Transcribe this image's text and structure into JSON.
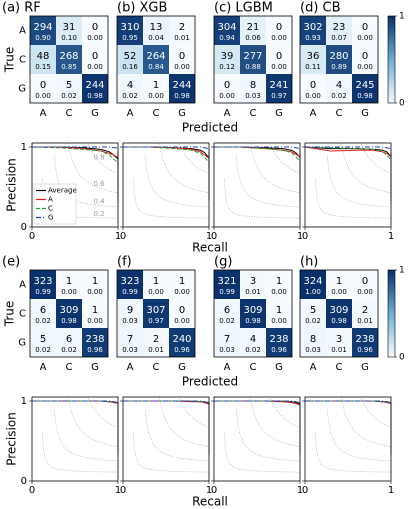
{
  "chart_data": [
    {
      "type": "heatmap",
      "title": "(a) RF",
      "ylabel": "True",
      "xlabel": "Predicted",
      "x": [
        "A",
        "C",
        "G"
      ],
      "y": [
        "A",
        "C",
        "G"
      ],
      "values": [
        [
          294,
          31,
          0
        ],
        [
          48,
          268,
          0
        ],
        [
          0,
          5,
          244
        ]
      ],
      "fractions": [
        [
          0.9,
          0.1,
          0
        ],
        [
          0.15,
          0.85,
          0
        ],
        [
          0,
          0.02,
          0.98
        ]
      ],
      "fraction_labels": [
        [
          "0.90",
          "0.10",
          "0.00"
        ],
        [
          "0.15",
          "0.85",
          "0.00"
        ],
        [
          "0.00",
          "0.02",
          "0.98"
        ]
      ]
    },
    {
      "type": "heatmap",
      "title": "(b) XGB",
      "x": [
        "A",
        "C",
        "G"
      ],
      "values": [
        [
          310,
          13,
          2
        ],
        [
          52,
          264,
          0
        ],
        [
          4,
          1,
          244
        ]
      ],
      "fractions": [
        [
          0.95,
          0.04,
          0.01
        ],
        [
          0.16,
          0.84,
          0
        ],
        [
          0.02,
          0,
          0.98
        ]
      ],
      "fraction_labels": [
        [
          "0.95",
          "0.04",
          "0.01"
        ],
        [
          "0.16",
          "0.84",
          "0.00"
        ],
        [
          "0.02",
          "0.00",
          "0.98"
        ]
      ]
    },
    {
      "type": "heatmap",
      "title": "(c) LGBM",
      "x": [
        "A",
        "C",
        "G"
      ],
      "values": [
        [
          304,
          21,
          0
        ],
        [
          39,
          277,
          0
        ],
        [
          0,
          8,
          241
        ]
      ],
      "fractions": [
        [
          0.94,
          0.06,
          0
        ],
        [
          0.12,
          0.88,
          0
        ],
        [
          0,
          0.03,
          0.97
        ]
      ],
      "fraction_labels": [
        [
          "0.94",
          "0.06",
          "0.00"
        ],
        [
          "0.12",
          "0.88",
          "0.00"
        ],
        [
          "0.00",
          "0.03",
          "0.97"
        ]
      ]
    },
    {
      "type": "heatmap",
      "title": "(d) CB",
      "x": [
        "A",
        "C",
        "G"
      ],
      "values": [
        [
          302,
          23,
          0
        ],
        [
          36,
          280,
          0
        ],
        [
          0,
          4,
          245
        ]
      ],
      "fractions": [
        [
          0.93,
          0.07,
          0
        ],
        [
          0.11,
          0.89,
          0
        ],
        [
          0,
          0.02,
          0.98
        ]
      ],
      "fraction_labels": [
        [
          "0.93",
          "0.07",
          "0.00"
        ],
        [
          "0.11",
          "0.89",
          "0.00"
        ],
        [
          "0.00",
          "0.02",
          "0.98"
        ]
      ],
      "clim": [
        0,
        1
      ],
      "colorbar_ticks": [
        0,
        1
      ]
    },
    {
      "type": "line",
      "ylabel": "Precision",
      "xlabel": "Recall",
      "xlim": [
        0,
        1
      ],
      "ylim": [
        0,
        1.05
      ],
      "xticks": [
        0,
        1
      ],
      "yticks": [
        0,
        1
      ],
      "iso_f1": [
        0.2,
        0.4,
        0.6,
        0.8
      ],
      "iso_f1_labeled": true,
      "legend": "lower left",
      "x": [
        0,
        0.3,
        0.6,
        0.8,
        0.9,
        0.95,
        1,
        1
      ],
      "series": [
        {
          "name": "Average",
          "color": "#000000",
          "linestyle": "solid",
          "values": [
            1,
            1,
            0.99,
            0.97,
            0.94,
            0.9,
            0.85,
            0.33
          ]
        },
        {
          "name": "A",
          "color": "#e31a1c",
          "linestyle": "solid",
          "values": [
            1,
            1,
            0.98,
            0.95,
            0.92,
            0.9,
            0.87,
            0.35
          ]
        },
        {
          "name": "C",
          "color": "#2ca02c",
          "linestyle": "dashed",
          "values": [
            1,
            0.99,
            0.97,
            0.95,
            0.9,
            0.85,
            0.8,
            0.33
          ]
        },
        {
          "name": "G",
          "color": "#1f3fbf",
          "linestyle": "dashdot",
          "values": [
            1,
            1,
            1,
            1,
            1,
            0.99,
            0.99,
            0.31
          ]
        }
      ]
    },
    {
      "type": "line",
      "xlim": [
        0,
        1
      ],
      "ylim": [
        0,
        1.05
      ],
      "xticks": [
        0,
        1
      ],
      "yticks": [
        0,
        1
      ],
      "iso_f1": [
        0.2,
        0.4,
        0.6,
        0.8
      ],
      "x": [
        0,
        0.3,
        0.6,
        0.8,
        0.9,
        0.95,
        1,
        1
      ],
      "series": [
        {
          "color": "#000000",
          "linestyle": "solid",
          "values": [
            1,
            1,
            0.99,
            0.98,
            0.96,
            0.93,
            0.86,
            0.33
          ]
        },
        {
          "color": "#e31a1c",
          "linestyle": "solid",
          "values": [
            1,
            1,
            0.99,
            0.97,
            0.94,
            0.9,
            0.86,
            0.35
          ]
        },
        {
          "color": "#2ca02c",
          "linestyle": "dashed",
          "values": [
            1,
            1,
            0.98,
            0.96,
            0.92,
            0.87,
            0.8,
            0.33
          ]
        },
        {
          "color": "#1f3fbf",
          "linestyle": "dashdot",
          "values": [
            1,
            1,
            1,
            1,
            1,
            0.99,
            0.98,
            0.31
          ]
        }
      ]
    },
    {
      "type": "line",
      "xlim": [
        0,
        1
      ],
      "ylim": [
        0,
        1.05
      ],
      "xticks": [
        0,
        1
      ],
      "yticks": [
        0,
        1
      ],
      "iso_f1": [
        0.2,
        0.4,
        0.6,
        0.8
      ],
      "x": [
        0,
        0.3,
        0.6,
        0.8,
        0.9,
        0.95,
        1,
        1
      ],
      "series": [
        {
          "color": "#000000",
          "linestyle": "solid",
          "values": [
            1,
            1,
            0.99,
            0.98,
            0.96,
            0.93,
            0.87,
            0.33
          ]
        },
        {
          "color": "#e31a1c",
          "linestyle": "solid",
          "values": [
            1,
            1,
            0.98,
            0.96,
            0.94,
            0.91,
            0.88,
            0.35
          ]
        },
        {
          "color": "#2ca02c",
          "linestyle": "dashed",
          "values": [
            1,
            1,
            0.98,
            0.96,
            0.93,
            0.88,
            0.82,
            0.33
          ]
        },
        {
          "color": "#1f3fbf",
          "linestyle": "dashdot",
          "values": [
            1,
            1,
            1,
            1,
            1,
            0.99,
            0.98,
            0.31
          ]
        }
      ]
    },
    {
      "type": "line",
      "xlim": [
        0,
        1
      ],
      "ylim": [
        0,
        1.05
      ],
      "xticks": [
        0,
        1
      ],
      "yticks": [
        0,
        1
      ],
      "iso_f1": [
        0.2,
        0.4,
        0.6,
        0.8
      ],
      "x": [
        0,
        0.3,
        0.6,
        0.8,
        0.9,
        0.95,
        1,
        1
      ],
      "series": [
        {
          "color": "#000000",
          "linestyle": "solid",
          "values": [
            1,
            0.98,
            0.98,
            0.97,
            0.96,
            0.94,
            0.88,
            0.33
          ]
        },
        {
          "color": "#e31a1c",
          "linestyle": "solid",
          "values": [
            1,
            0.95,
            0.96,
            0.96,
            0.94,
            0.92,
            0.88,
            0.35
          ]
        },
        {
          "color": "#2ca02c",
          "linestyle": "dashed",
          "values": [
            1,
            0.99,
            0.98,
            0.97,
            0.94,
            0.9,
            0.84,
            0.33
          ]
        },
        {
          "color": "#1f3fbf",
          "linestyle": "dashdot",
          "values": [
            1,
            1,
            1,
            1,
            1,
            0.99,
            0.98,
            0.31
          ]
        }
      ]
    },
    {
      "type": "heatmap",
      "title": "(e)",
      "ylabel": "True",
      "xlabel": "Predicted",
      "x": [
        "A",
        "C",
        "G"
      ],
      "y": [
        "A",
        "C",
        "G"
      ],
      "values": [
        [
          323,
          1,
          1
        ],
        [
          6,
          309,
          1
        ],
        [
          5,
          6,
          238
        ]
      ],
      "fractions": [
        [
          0.99,
          0,
          0
        ],
        [
          0.02,
          0.98,
          0
        ],
        [
          0.02,
          0.02,
          0.96
        ]
      ],
      "fraction_labels": [
        [
          "0.99",
          "0.00",
          "0.00"
        ],
        [
          "0.02",
          "0.98",
          "0.00"
        ],
        [
          "0.02",
          "0.02",
          "0.96"
        ]
      ]
    },
    {
      "type": "heatmap",
      "title": "(f)",
      "x": [
        "A",
        "C",
        "G"
      ],
      "values": [
        [
          323,
          1,
          1
        ],
        [
          9,
          307,
          0
        ],
        [
          7,
          2,
          240
        ]
      ],
      "fractions": [
        [
          0.99,
          0,
          0
        ],
        [
          0.03,
          0.97,
          0
        ],
        [
          0.03,
          0.01,
          0.96
        ]
      ],
      "fraction_labels": [
        [
          "0.99",
          "0.00",
          "0.00"
        ],
        [
          "0.03",
          "0.97",
          "0.00"
        ],
        [
          "0.03",
          "0.01",
          "0.96"
        ]
      ]
    },
    {
      "type": "heatmap",
      "title": "(g)",
      "x": [
        "A",
        "C",
        "G"
      ],
      "values": [
        [
          321,
          3,
          1
        ],
        [
          6,
          309,
          1
        ],
        [
          7,
          4,
          238
        ]
      ],
      "fractions": [
        [
          0.99,
          0.01,
          0
        ],
        [
          0.02,
          0.98,
          0
        ],
        [
          0.03,
          0.02,
          0.96
        ]
      ],
      "fraction_labels": [
        [
          "0.99",
          "0.01",
          "0.00"
        ],
        [
          "0.02",
          "0.98",
          "0.00"
        ],
        [
          "0.03",
          "0.02",
          "0.96"
        ]
      ]
    },
    {
      "type": "heatmap",
      "title": "(h)",
      "x": [
        "A",
        "C",
        "G"
      ],
      "values": [
        [
          324,
          1,
          0
        ],
        [
          5,
          309,
          2
        ],
        [
          8,
          3,
          238
        ]
      ],
      "fractions": [
        [
          1,
          0,
          0
        ],
        [
          0.02,
          0.98,
          0.01
        ],
        [
          0.03,
          0.01,
          0.96
        ]
      ],
      "fraction_labels": [
        [
          "1.00",
          "0.00",
          "0.00"
        ],
        [
          "0.02",
          "0.98",
          "0.01"
        ],
        [
          "0.03",
          "0.01",
          "0.96"
        ]
      ],
      "clim": [
        0,
        1
      ],
      "colorbar_ticks": [
        0,
        1
      ]
    },
    {
      "type": "line",
      "ylabel": "Precision",
      "xlabel": "Recall",
      "xlim": [
        0,
        1
      ],
      "ylim": [
        0,
        1.05
      ],
      "xticks": [
        0,
        1
      ],
      "yticks": [
        0,
        1
      ],
      "iso_f1": [
        0.2,
        0.4,
        0.6,
        0.8
      ],
      "x": [
        0,
        0.3,
        0.6,
        0.8,
        0.9,
        0.95,
        1,
        1
      ],
      "series": [
        {
          "color": "#000000",
          "linestyle": "solid",
          "values": [
            1,
            1,
            1,
            1,
            0.99,
            0.99,
            0.97,
            0.33
          ]
        },
        {
          "color": "#e31a1c",
          "linestyle": "solid",
          "values": [
            1,
            1,
            1,
            1,
            0.99,
            0.98,
            0.97,
            0.35
          ]
        },
        {
          "color": "#2ca02c",
          "linestyle": "dashed",
          "values": [
            1,
            1,
            1,
            1,
            0.99,
            0.99,
            0.98,
            0.33
          ]
        },
        {
          "color": "#1f3fbf",
          "linestyle": "dashdot",
          "values": [
            1,
            1,
            1,
            1,
            1,
            0.99,
            0.98,
            0.31
          ]
        }
      ]
    },
    {
      "type": "line",
      "xlim": [
        0,
        1
      ],
      "ylim": [
        0,
        1.05
      ],
      "xticks": [
        0,
        1
      ],
      "yticks": [
        0,
        1
      ],
      "iso_f1": [
        0.2,
        0.4,
        0.6,
        0.8
      ],
      "x": [
        0,
        0.3,
        0.6,
        0.8,
        0.9,
        0.95,
        1,
        1
      ],
      "series": [
        {
          "color": "#000000",
          "linestyle": "solid",
          "values": [
            1,
            1,
            1,
            1,
            0.99,
            0.99,
            0.97,
            0.33
          ]
        },
        {
          "color": "#e31a1c",
          "linestyle": "solid",
          "values": [
            1,
            1,
            1,
            0.99,
            0.99,
            0.98,
            0.96,
            0.35
          ]
        },
        {
          "color": "#2ca02c",
          "linestyle": "dashed",
          "values": [
            1,
            1,
            1,
            1,
            0.99,
            0.99,
            0.98,
            0.33
          ]
        },
        {
          "color": "#1f3fbf",
          "linestyle": "dashdot",
          "values": [
            1,
            1,
            1,
            1,
            1,
            0.99,
            0.98,
            0.31
          ]
        }
      ]
    },
    {
      "type": "line",
      "xlim": [
        0,
        1
      ],
      "ylim": [
        0,
        1.05
      ],
      "xticks": [
        0,
        1
      ],
      "yticks": [
        0,
        1
      ],
      "iso_f1": [
        0.2,
        0.4,
        0.6,
        0.8
      ],
      "x": [
        0,
        0.3,
        0.6,
        0.8,
        0.9,
        0.95,
        1,
        1
      ],
      "series": [
        {
          "color": "#000000",
          "linestyle": "solid",
          "values": [
            1,
            1,
            1,
            1,
            0.99,
            0.98,
            0.96,
            0.33
          ]
        },
        {
          "color": "#e31a1c",
          "linestyle": "solid",
          "values": [
            1,
            1,
            1,
            0.99,
            0.98,
            0.97,
            0.95,
            0.35
          ]
        },
        {
          "color": "#2ca02c",
          "linestyle": "dashed",
          "values": [
            1,
            1,
            1,
            1,
            0.99,
            0.99,
            0.98,
            0.33
          ]
        },
        {
          "color": "#1f3fbf",
          "linestyle": "dashdot",
          "values": [
            1,
            1,
            1,
            1,
            1,
            0.99,
            0.98,
            0.31
          ]
        }
      ]
    },
    {
      "type": "line",
      "xlim": [
        0,
        1
      ],
      "ylim": [
        0,
        1.05
      ],
      "xticks": [
        0,
        1
      ],
      "yticks": [
        0,
        1
      ],
      "iso_f1": [
        0.2,
        0.4,
        0.6,
        0.8
      ],
      "x": [
        0,
        0.3,
        0.6,
        0.8,
        0.9,
        0.95,
        1,
        1
      ],
      "series": [
        {
          "color": "#000000",
          "linestyle": "solid",
          "values": [
            1,
            1,
            1,
            1,
            0.99,
            0.99,
            0.97,
            0.33
          ]
        },
        {
          "color": "#e31a1c",
          "linestyle": "solid",
          "values": [
            1,
            1,
            1,
            1,
            0.99,
            0.98,
            0.97,
            0.35
          ]
        },
        {
          "color": "#2ca02c",
          "linestyle": "dashed",
          "values": [
            1,
            1,
            1,
            1,
            0.99,
            0.99,
            0.98,
            0.33
          ]
        },
        {
          "color": "#1f3fbf",
          "linestyle": "dashdot",
          "values": [
            1,
            1,
            1,
            1,
            1,
            0.99,
            0.98,
            0.31
          ]
        }
      ]
    }
  ]
}
